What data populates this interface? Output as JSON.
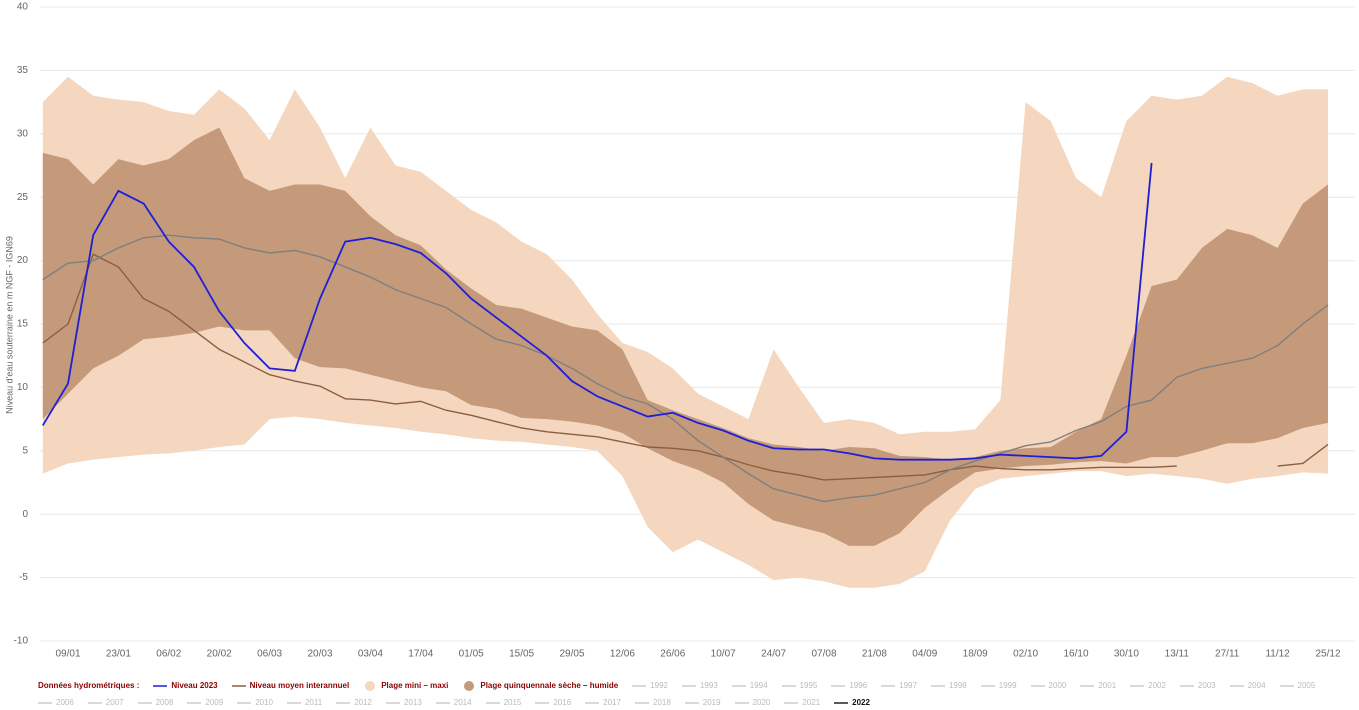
{
  "chart_data": {
    "type": "line",
    "y_label": "Niveau d'eau souterraine en m NGF - IGN69",
    "legend_title": "Données hydrométriques :",
    "categories": [
      null,
      "09/01",
      null,
      "23/01",
      null,
      "06/02",
      null,
      "20/02",
      null,
      "06/03",
      null,
      "20/03",
      null,
      "03/04",
      null,
      "17/04",
      null,
      "01/05",
      null,
      "15/05",
      null,
      "29/05",
      null,
      "12/06",
      null,
      "26/06",
      null,
      "10/07",
      null,
      "24/07",
      null,
      "07/08",
      null,
      "21/08",
      null,
      "04/09",
      null,
      "18/09",
      null,
      "02/10",
      null,
      "16/10",
      null,
      "30/10",
      null,
      "13/11",
      null,
      "27/11",
      null,
      "11/12",
      null,
      "25/12"
    ],
    "ylim": [
      -10,
      40
    ],
    "yticks": [
      -10,
      -5,
      0,
      5,
      10,
      15,
      20,
      25,
      30,
      35,
      40
    ],
    "grid": true,
    "series": [
      {
        "name": "Niveau 2023",
        "kind": "line",
        "color": "#1f1fd6",
        "values": [
          7,
          10.3,
          22,
          25.5,
          24.5,
          21.5,
          19.5,
          16,
          13.5,
          11.5,
          11.3,
          17,
          21.5,
          21.8,
          21.3,
          20.6,
          19,
          17,
          15.5,
          14,
          12.5,
          10.5,
          9.3,
          8.5,
          7.7,
          8,
          7.2,
          6.6,
          5.8,
          5.2,
          5.1,
          5.1,
          4.8,
          4.4,
          4.3,
          4.3,
          4.3,
          4.4,
          4.7,
          4.6,
          4.5,
          4.4,
          4.6,
          6.5,
          27.7,
          null,
          null,
          null,
          null,
          null,
          null,
          null
        ]
      },
      {
        "name": "Niveau moyen interannuel",
        "kind": "line",
        "color": "#8b5e44",
        "values": [
          13.5,
          15,
          20.5,
          19.5,
          17,
          16,
          14.5,
          13,
          12,
          11,
          10.5,
          10.1,
          9.1,
          9,
          8.7,
          8.9,
          8.2,
          7.8,
          7.3,
          6.8,
          6.5,
          6.3,
          6.1,
          5.7,
          5.3,
          5.2,
          5,
          4.5,
          3.9,
          3.4,
          3.1,
          2.7,
          2.8,
          2.9,
          3,
          3.1,
          3.5,
          3.8,
          3.6,
          3.5,
          3.5,
          3.6,
          3.7,
          3.7,
          3.7,
          3.8,
          null,
          null,
          null,
          3.8,
          4,
          5.5
        ]
      },
      {
        "name": "Plage mini – maxi",
        "kind": "band",
        "color": "#f4d7be",
        "high": [
          32.5,
          34.5,
          33,
          32.7,
          32.5,
          31.8,
          31.5,
          33.5,
          32,
          29.5,
          33.5,
          30.5,
          26.5,
          30.5,
          27.5,
          27,
          25.5,
          24,
          23,
          21.5,
          20.5,
          18.5,
          15.8,
          13.5,
          12.8,
          11.5,
          9.5,
          8.5,
          7.5,
          13,
          10,
          7.2,
          7.5,
          7.2,
          6.3,
          6.5,
          6.5,
          6.7,
          9,
          32.5,
          31,
          26.5,
          25,
          31,
          33,
          32.7,
          33,
          34.5,
          34,
          33,
          33.5,
          33.5
        ],
        "low": [
          3.2,
          4,
          4.3,
          4.5,
          4.7,
          4.8,
          5,
          5.3,
          5.5,
          7.5,
          7.7,
          7.5,
          7.2,
          7,
          6.8,
          6.5,
          6.3,
          6,
          5.8,
          5.7,
          5.5,
          5.3,
          5,
          3,
          -1,
          -3,
          -2,
          -3,
          -4,
          -5.2,
          -5,
          -5.3,
          -5.8,
          -5.8,
          -5.5,
          -4.5,
          -0.5,
          2,
          2.8,
          3,
          3.2,
          3.4,
          3.4,
          3,
          3.2,
          3,
          2.8,
          2.4,
          2.8,
          3,
          3.3,
          3.2
        ]
      },
      {
        "name": "Plage quinquennale sèche – humide",
        "kind": "band",
        "color": "#c49a7b",
        "high": [
          28.5,
          28,
          26,
          28,
          27.5,
          28,
          29.5,
          30.5,
          26.5,
          25.5,
          26,
          26,
          25.5,
          23.5,
          22,
          21.2,
          19.3,
          17.8,
          16.5,
          16.2,
          15.5,
          14.8,
          14.5,
          13,
          9,
          8.2,
          7.5,
          6.8,
          6,
          5.5,
          5.3,
          5,
          5.3,
          5.2,
          4.6,
          4.5,
          4.3,
          4.5,
          5,
          5.2,
          5.3,
          6.5,
          7.5,
          12.5,
          18,
          18.5,
          21,
          22.5,
          22,
          21,
          24.5,
          26
        ],
        "low": [
          7.5,
          9.5,
          11.5,
          12.5,
          13.8,
          14,
          14.3,
          14.8,
          14.5,
          14.5,
          12.3,
          11.6,
          11.5,
          11,
          10.5,
          10,
          9.7,
          8.6,
          8.3,
          7.6,
          7.5,
          7.3,
          7,
          6.4,
          5.2,
          4.2,
          3.5,
          2.5,
          0.8,
          -0.5,
          -1,
          -1.5,
          -2.5,
          -2.5,
          -1.5,
          0.5,
          2,
          3.3,
          3.6,
          3.8,
          3.9,
          4.1,
          4.2,
          4,
          4.5,
          4.5,
          5,
          5.6,
          5.6,
          6,
          6.8,
          7.2
        ]
      },
      {
        "name": "2022",
        "kind": "line",
        "color": "#7f7f7f",
        "values": [
          18.5,
          19.8,
          20,
          21,
          21.8,
          22,
          21.8,
          21.7,
          21,
          20.6,
          20.8,
          20.3,
          19.5,
          18.7,
          17.7,
          17,
          16.3,
          15,
          13.8,
          13.3,
          12.5,
          11.5,
          10.3,
          9.3,
          8.7,
          7.5,
          5.8,
          4.5,
          3.2,
          2,
          1.5,
          1,
          1.3,
          1.5,
          2,
          2.5,
          3.5,
          4.2,
          4.8,
          5.4,
          5.7,
          6.6,
          7.3,
          8.5,
          9,
          10.8,
          11.5,
          11.9,
          12.3,
          13.3,
          15,
          16.5
        ]
      }
    ],
    "inactive_series": [
      "1992",
      "1993",
      "1994",
      "1995",
      "1996",
      "1997",
      "1998",
      "1999",
      "2000",
      "2001",
      "2002",
      "2003",
      "2004",
      "2005",
      "2006",
      "2007",
      "2008",
      "2009",
      "2010",
      "2011",
      "2012",
      "2013",
      "2014",
      "2015",
      "2016",
      "2017",
      "2018",
      "2019",
      "2020",
      "2021"
    ]
  }
}
